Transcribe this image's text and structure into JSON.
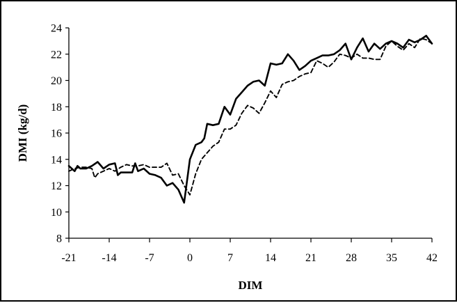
{
  "chart_data": {
    "type": "line",
    "title": "",
    "xlabel": "DIM",
    "ylabel": "DMI (kg/d)",
    "xlim": [
      -21,
      42
    ],
    "ylim": [
      8,
      24
    ],
    "x_ticks": [
      -21,
      -14,
      -7,
      0,
      7,
      14,
      21,
      28,
      35,
      42
    ],
    "y_ticks": [
      8,
      10,
      12,
      14,
      16,
      18,
      20,
      22,
      24
    ],
    "grid": false,
    "legend": "none",
    "series": [
      {
        "style": "solid",
        "color": "#000000",
        "x": [
          -21,
          -20,
          -19.5,
          -19,
          -18,
          -17,
          -16,
          -15,
          -14,
          -13,
          -12.5,
          -12,
          -11,
          -10,
          -9.5,
          -9,
          -8,
          -7,
          -6,
          -5,
          -4,
          -3,
          -2,
          -1,
          0,
          1,
          2,
          2.5,
          3,
          4,
          5,
          6,
          7,
          8,
          9,
          10,
          11,
          12,
          13,
          14,
          15,
          16,
          17,
          18,
          19,
          20,
          21,
          22,
          23,
          24,
          25,
          26,
          27,
          28,
          29,
          30,
          31,
          32,
          33,
          34,
          35,
          36,
          37,
          38,
          39,
          40,
          41,
          42
        ],
        "y": [
          13.5,
          13.1,
          13.5,
          13.3,
          13.3,
          13.5,
          13.8,
          13.3,
          13.6,
          13.7,
          12.8,
          13.0,
          13.0,
          13.0,
          13.7,
          13.1,
          13.3,
          12.9,
          12.8,
          12.6,
          12.0,
          12.2,
          11.7,
          10.7,
          14.0,
          15.1,
          15.3,
          15.6,
          16.7,
          16.6,
          16.7,
          18.0,
          17.4,
          18.6,
          19.1,
          19.6,
          19.9,
          20.0,
          19.6,
          21.3,
          21.2,
          21.3,
          22.0,
          21.5,
          20.8,
          21.1,
          21.5,
          21.7,
          21.9,
          21.9,
          22.0,
          22.3,
          22.8,
          21.6,
          22.5,
          23.2,
          22.2,
          22.8,
          22.4,
          22.8,
          23.0,
          22.8,
          22.5,
          23.1,
          22.9,
          23.1,
          23.4,
          22.8
        ]
      },
      {
        "style": "dashed",
        "color": "#000000",
        "x": [
          -21,
          -20,
          -19,
          -18,
          -17,
          -16.5,
          -16,
          -15,
          -14,
          -13,
          -12,
          -11,
          -10,
          -9,
          -8,
          -7,
          -6,
          -5,
          -4,
          -3,
          -2,
          -1,
          0,
          1,
          2,
          3,
          4,
          5,
          6,
          7,
          8,
          9,
          10,
          11,
          12,
          13,
          14,
          15,
          16,
          17,
          18,
          19,
          20,
          21,
          22,
          23,
          24,
          25,
          26,
          27,
          28,
          29,
          30,
          31,
          32,
          33,
          34,
          35,
          36,
          37,
          38,
          39,
          40,
          41,
          42
        ],
        "y": [
          13.1,
          13.3,
          13.4,
          13.4,
          13.3,
          12.6,
          12.9,
          13.1,
          13.3,
          13.1,
          13.4,
          13.6,
          13.5,
          13.5,
          13.6,
          13.4,
          13.4,
          13.4,
          13.7,
          12.8,
          12.9,
          12.0,
          11.3,
          12.9,
          14.0,
          14.5,
          15.0,
          15.3,
          16.3,
          16.3,
          16.6,
          17.5,
          18.1,
          17.9,
          17.5,
          18.3,
          19.2,
          18.7,
          19.7,
          19.9,
          20.0,
          20.3,
          20.5,
          20.6,
          21.5,
          21.3,
          21.0,
          21.4,
          22.0,
          21.9,
          21.7,
          22.0,
          21.7,
          21.7,
          21.6,
          21.6,
          22.6,
          23.0,
          22.6,
          22.3,
          22.8,
          22.5,
          23.2,
          23.1,
          22.8
        ]
      }
    ]
  }
}
